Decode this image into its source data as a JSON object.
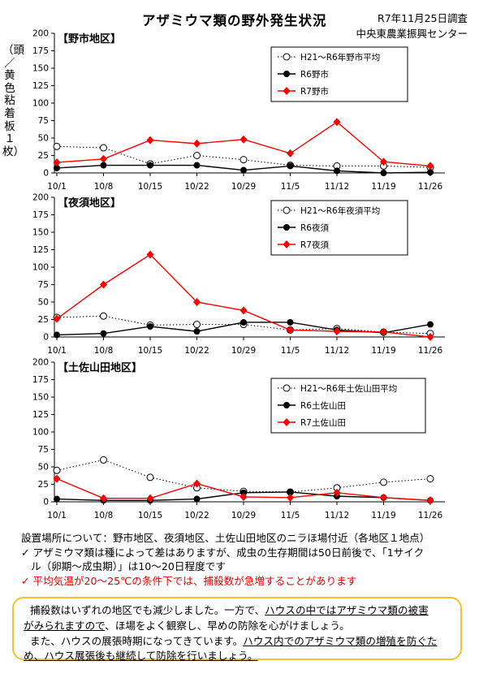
{
  "header": {
    "title": "アザミウマ類の野外発生状況",
    "date": "R7年11月25日調査",
    "org": "中央東農業振興センター"
  },
  "y_unit_label": "（頭／黄色粘着板１枚）",
  "chart_data": [
    {
      "type": "line",
      "title": "【野市地区】",
      "categories": [
        "10/1",
        "10/8",
        "10/15",
        "10/22",
        "10/29",
        "11/5",
        "11/12",
        "11/19",
        "11/26"
      ],
      "ylim": [
        0,
        200
      ],
      "yticks": [
        0,
        25,
        50,
        75,
        100,
        125,
        150,
        175,
        200
      ],
      "ylabel": "（頭／黄色粘着板１枚）",
      "legend_position": "top-right",
      "series": [
        {
          "name": "H21～R6年野市平均",
          "style": "dotted-open-circle",
          "color": "#000000",
          "values": [
            38,
            36,
            13,
            25,
            19,
            11,
            10,
            10,
            8
          ]
        },
        {
          "name": "R6野市",
          "style": "solid-filled-circle",
          "color": "#000000",
          "values": [
            7,
            11,
            11,
            11,
            4,
            10,
            3,
            0,
            1
          ]
        },
        {
          "name": "R7野市",
          "style": "solid-diamond",
          "color": "#ff0000",
          "values": [
            15,
            20,
            47,
            42,
            48,
            28,
            73,
            16,
            10
          ]
        }
      ]
    },
    {
      "type": "line",
      "title": "【夜須地区】",
      "categories": [
        "10/1",
        "10/8",
        "10/15",
        "10/22",
        "10/29",
        "11/5",
        "11/12",
        "11/19",
        "11/26"
      ],
      "ylim": [
        0,
        200
      ],
      "yticks": [
        0,
        25,
        50,
        75,
        100,
        125,
        150,
        175,
        200
      ],
      "legend_position": "top-right",
      "series": [
        {
          "name": "H21～R6年夜須平均",
          "style": "dotted-open-circle",
          "color": "#000000",
          "values": [
            28,
            30,
            17,
            18,
            18,
            10,
            12,
            7,
            5
          ]
        },
        {
          "name": "R6夜須",
          "style": "solid-filled-circle",
          "color": "#000000",
          "values": [
            3,
            5,
            15,
            8,
            21,
            21,
            10,
            6,
            18
          ]
        },
        {
          "name": "R7夜須",
          "style": "solid-diamond",
          "color": "#ff0000",
          "values": [
            26,
            75,
            118,
            50,
            38,
            10,
            8,
            7,
            0
          ]
        }
      ]
    },
    {
      "type": "line",
      "title": "【土佐山田地区】",
      "categories": [
        "10/1",
        "10/8",
        "10/15",
        "10/22",
        "10/29",
        "11/5",
        "11/12",
        "11/19",
        "11/26"
      ],
      "ylim": [
        0,
        200
      ],
      "yticks": [
        0,
        25,
        50,
        75,
        100,
        125,
        150,
        175,
        200
      ],
      "legend_position": "top-right",
      "series": [
        {
          "name": "H21～R6年土佐山田平均",
          "style": "dotted-open-circle",
          "color": "#000000",
          "values": [
            45,
            60,
            35,
            20,
            15,
            14,
            20,
            28,
            33
          ]
        },
        {
          "name": "R6土佐山田",
          "style": "solid-filled-circle",
          "color": "#000000",
          "values": [
            4,
            2,
            2,
            4,
            13,
            14,
            8,
            6,
            2
          ]
        },
        {
          "name": "R7土佐山田",
          "style": "solid-diamond",
          "color": "#ff0000",
          "values": [
            33,
            5,
            5,
            26,
            7,
            6,
            13,
            6,
            2
          ]
        }
      ]
    }
  ],
  "notes": {
    "line1": "設置場所について：野市地区、夜須地区、土佐山田地区のニラほ場付近（各地区１地点）",
    "line2a": "✓ アザミウマ類は種によって差はありますが、成虫の生存期間は50日前後で、「1サイク",
    "line2b": "ル（卵期～成虫期）」は10～20日程度です",
    "line3": "✓ 平均気温が20～25℃の条件下では、捕殺数が急増することがあります"
  },
  "message": {
    "line1a": "捕殺数はいずれの地区でも減少しました。一方で、",
    "line1b": "ハウスの中ではアザミウマ類の被害",
    "line2a": "がみられますので",
    "line2b": "、ほ場をよく観察し、早めの防除を心がけましょう。",
    "line3a": "また、ハウスの展張時期になってきています。",
    "line3b": "ハウス内でのアザミウマ類の増殖を防ぐた",
    "line4a": "め、ハウス展張後も継続して防除を行いましょう。"
  }
}
